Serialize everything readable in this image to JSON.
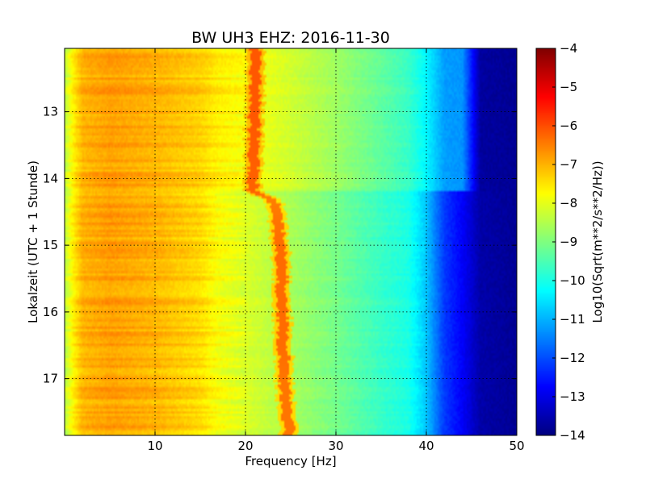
{
  "chart_data": {
    "type": "heatmap",
    "title": "BW UH3 EHZ: 2016-11-30",
    "xlabel": "Frequency [Hz]",
    "ylabel": "Lokalzeit (UTC + 1 Stunde)",
    "xlim": [
      0,
      50
    ],
    "ylim": [
      12.05,
      17.85
    ],
    "y_inverted": true,
    "grid": true,
    "x_ticks": [
      10,
      20,
      30,
      40,
      50
    ],
    "x_tick_labels": [
      "10",
      "20",
      "30",
      "40",
      "50"
    ],
    "y_ticks": [
      13,
      14,
      15,
      16,
      17
    ],
    "y_tick_labels": [
      "13",
      "14",
      "15",
      "16",
      "17"
    ],
    "colorbar": {
      "label": "Log10(Sqrt(m**2/s**2/Hz))",
      "range": [
        -14,
        -4
      ],
      "ticks": [
        -4,
        -5,
        -6,
        -7,
        -8,
        -9,
        -10,
        -11,
        -12,
        -13,
        -14
      ],
      "tick_labels": [
        "−4",
        "−5",
        "−6",
        "−7",
        "−8",
        "−9",
        "−10",
        "−11",
        "−12",
        "−13",
        "−14"
      ],
      "colormap": "jet",
      "colors": [
        "#00007f",
        "#0000ff",
        "#007fff",
        "#00ffff",
        "#7fff7f",
        "#ffff00",
        "#ff7f00",
        "#ff0000",
        "#7f0000"
      ]
    },
    "spectral_profile": {
      "frequency_hz": [
        0,
        1,
        2,
        5,
        10,
        15,
        17,
        20,
        25,
        30,
        35,
        38,
        40,
        42,
        44,
        46,
        50
      ],
      "level_before_14_2": [
        -8.4,
        -7.6,
        -7.0,
        -6.8,
        -7.0,
        -7.3,
        -7.6,
        -7.8,
        -8.2,
        -8.7,
        -9.3,
        -9.7,
        -10.3,
        -11.2,
        -11.3,
        -13.7,
        -13.8
      ],
      "level_after_14_2": [
        -8.4,
        -7.6,
        -7.0,
        -6.8,
        -7.0,
        -7.4,
        -7.8,
        -8.1,
        -8.6,
        -9.1,
        -9.7,
        -10.0,
        -10.8,
        -12.2,
        -12.8,
        -13.6,
        -13.8
      ]
    },
    "peak_track": {
      "time_h": [
        12.05,
        13.0,
        14.0,
        14.2,
        14.3,
        14.6,
        15.0,
        15.5,
        16.0,
        16.5,
        17.0,
        17.5,
        17.85
      ],
      "frequency_hz": [
        21.2,
        21.0,
        20.8,
        20.7,
        23.0,
        23.5,
        23.8,
        24.0,
        24.1,
        24.2,
        24.3,
        24.6,
        24.8
      ],
      "level": [
        -6.1,
        -6.1,
        -6.2,
        -6.2,
        -6.5,
        -6.4,
        -6.3,
        -6.3,
        -6.3,
        -6.3,
        -6.4,
        -6.4,
        -6.4
      ]
    },
    "regime_change_time_h": 14.2
  }
}
